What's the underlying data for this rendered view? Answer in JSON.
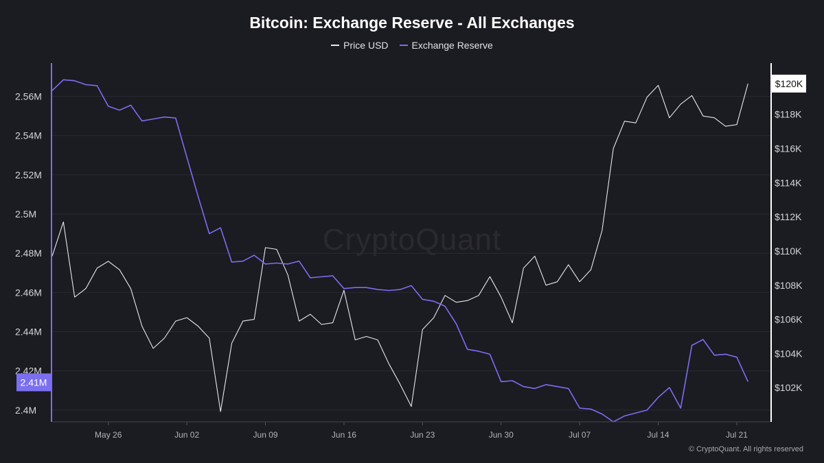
{
  "chart_data": {
    "type": "line",
    "title": "Bitcoin: Exchange Reserve - All Exchanges",
    "watermark": "CryptoQuant",
    "copyright": "© CryptoQuant. All rights reserved",
    "x_ticks": [
      "May 26",
      "Jun 02",
      "Jun 09",
      "Jun 16",
      "Jun 23",
      "Jun 30",
      "Jul 07",
      "Jul 14",
      "Jul 21"
    ],
    "x_range": [
      "2025-05-21",
      "2025-07-24"
    ],
    "dates": [
      "2025-05-21",
      "2025-05-22",
      "2025-05-23",
      "2025-05-24",
      "2025-05-25",
      "2025-05-26",
      "2025-05-27",
      "2025-05-28",
      "2025-05-29",
      "2025-05-30",
      "2025-05-31",
      "2025-06-01",
      "2025-06-02",
      "2025-06-03",
      "2025-06-04",
      "2025-06-05",
      "2025-06-06",
      "2025-06-07",
      "2025-06-08",
      "2025-06-09",
      "2025-06-10",
      "2025-06-11",
      "2025-06-12",
      "2025-06-13",
      "2025-06-14",
      "2025-06-15",
      "2025-06-16",
      "2025-06-17",
      "2025-06-18",
      "2025-06-19",
      "2025-06-20",
      "2025-06-21",
      "2025-06-22",
      "2025-06-23",
      "2025-06-24",
      "2025-06-25",
      "2025-06-26",
      "2025-06-27",
      "2025-06-28",
      "2025-06-29",
      "2025-06-30",
      "2025-07-01",
      "2025-07-02",
      "2025-07-03",
      "2025-07-04",
      "2025-07-05",
      "2025-07-06",
      "2025-07-07",
      "2025-07-08",
      "2025-07-09",
      "2025-07-10",
      "2025-07-11",
      "2025-07-12",
      "2025-07-13",
      "2025-07-14",
      "2025-07-15",
      "2025-07-16",
      "2025-07-17",
      "2025-07-18",
      "2025-07-19",
      "2025-07-20",
      "2025-07-21",
      "2025-07-22"
    ],
    "left_axis": {
      "ticks": [
        2400000,
        2420000,
        2440000,
        2460000,
        2480000,
        2500000,
        2520000,
        2540000,
        2560000
      ],
      "tick_labels": [
        "2.4M",
        "2.42M",
        "2.44M",
        "2.46M",
        "2.48M",
        "2.5M",
        "2.52M",
        "2.54M",
        "2.56M"
      ],
      "range": [
        2394000,
        2577000
      ],
      "current_label": "2.41M",
      "current_color": "#7b6ff0"
    },
    "right_axis": {
      "ticks": [
        102000,
        104000,
        106000,
        108000,
        110000,
        112000,
        114000,
        116000,
        118000,
        120000
      ],
      "tick_labels": [
        "$102K",
        "$104K",
        "$106K",
        "$108K",
        "$110K",
        "$112K",
        "$114K",
        "$116K",
        "$118K",
        "$120K"
      ],
      "range": [
        100000,
        121000
      ],
      "current_label": "$120K"
    },
    "grid": true,
    "legend_position": "top-center",
    "series": [
      {
        "name": "Price USD",
        "color": "#e8e8ec",
        "axis": "right",
        "values": [
          109700,
          111700,
          107300,
          107800,
          109000,
          109400,
          108900,
          107800,
          105600,
          104300,
          104900,
          105900,
          106100,
          105600,
          104900,
          100600,
          104600,
          105900,
          106000,
          110200,
          110100,
          108600,
          105900,
          106300,
          105700,
          105800,
          107700,
          104800,
          105000,
          104800,
          103400,
          102200,
          100900,
          105400,
          106100,
          107400,
          107000,
          107100,
          107400,
          108500,
          107300,
          105800,
          109000,
          109700,
          108000,
          108200,
          109200,
          108200,
          108900,
          111200,
          116000,
          117600,
          117500,
          119000,
          119700,
          117800,
          118600,
          119100,
          117900,
          117800,
          117300,
          117400,
          119800
        ]
      },
      {
        "name": "Exchange Reserve",
        "color": "#7b6ff0",
        "axis": "left",
        "values": [
          2563000,
          2568500,
          2568000,
          2566000,
          2565500,
          2555000,
          2553000,
          2555500,
          2547500,
          2548500,
          2549500,
          2549000,
          2529000,
          2509000,
          2490000,
          2493000,
          2475500,
          2476000,
          2479000,
          2474500,
          2475000,
          2474500,
          2476000,
          2467500,
          2468000,
          2468500,
          2462000,
          2462500,
          2462500,
          2461500,
          2461000,
          2461500,
          2463500,
          2456500,
          2455500,
          2453000,
          2444000,
          2431000,
          2430000,
          2428500,
          2414500,
          2415000,
          2412000,
          2411000,
          2413000,
          2412000,
          2411000,
          2401000,
          2400500,
          2398000,
          2394000,
          2397000,
          2398500,
          2400000,
          2406500,
          2411500,
          2401000,
          2433000,
          2436000,
          2428000,
          2428500,
          2427000,
          2414500
        ]
      }
    ]
  }
}
